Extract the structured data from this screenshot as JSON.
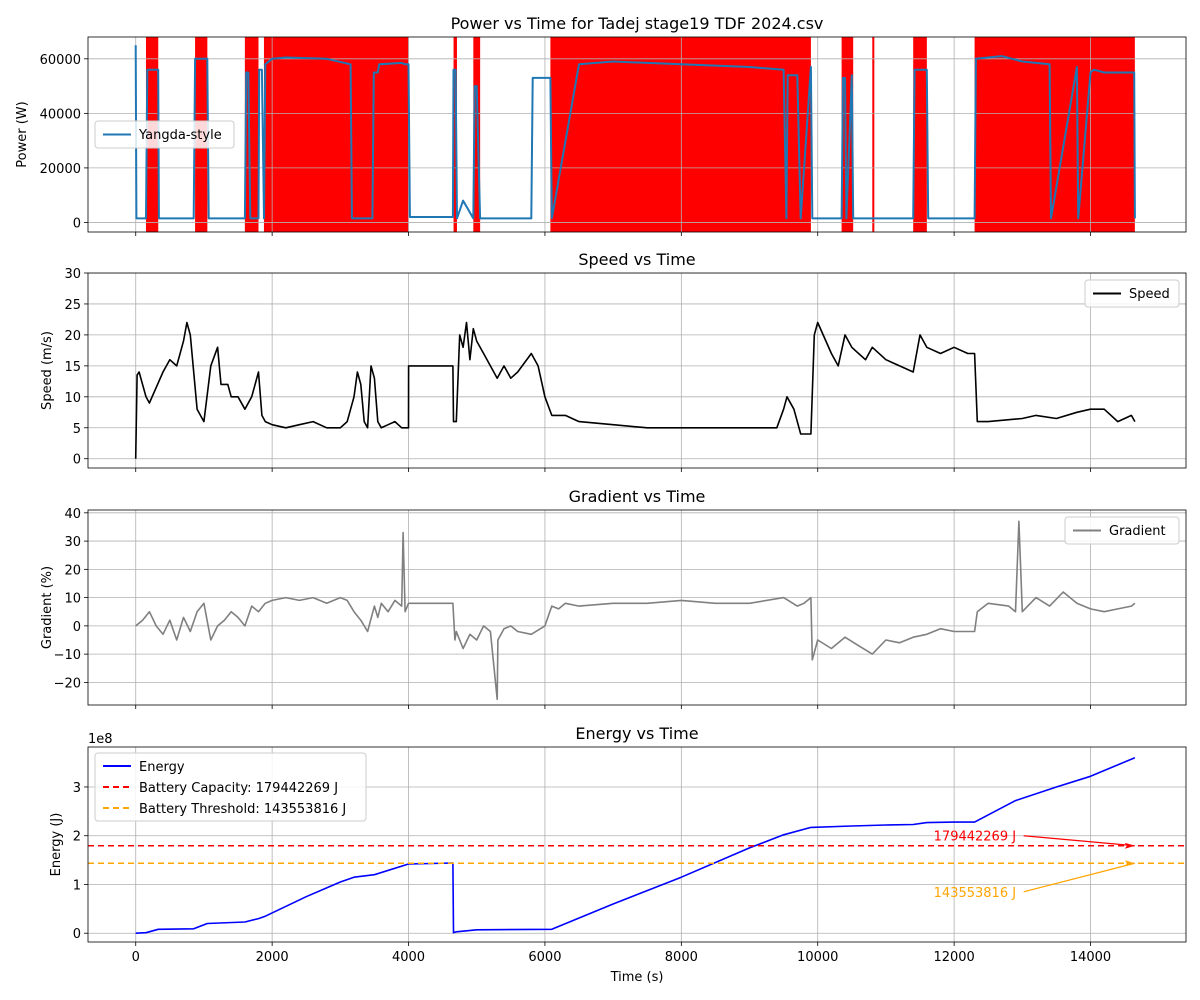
{
  "colors": {
    "power": "#1f77b4",
    "red_region": "#ff0000",
    "speed": "#000000",
    "gradient": "#808080",
    "energy": "#0000ff",
    "capacity": "#ff0000",
    "threshold": "#ffa500",
    "grid": "#b0b0b0"
  },
  "chart_data": [
    {
      "type": "line",
      "title": "Power vs Time for Tadej stage19 TDF 2024.csv",
      "xlabel": "",
      "ylabel": "Power (W)",
      "xlim": [
        -700,
        15400
      ],
      "ylim": [
        -3500,
        68000
      ],
      "yticks": [
        0,
        20000,
        40000,
        60000
      ],
      "ytick_labels": [
        "0",
        "20000",
        "40000",
        "60000"
      ],
      "grid": true,
      "legend": {
        "placement": "center-left",
        "entries": [
          "Yangda-style"
        ]
      },
      "series": [
        {
          "name": "Yangda-style",
          "x": [
            0,
            10,
            30,
            150,
            170,
            330,
            340,
            850,
            870,
            1050,
            1070,
            1600,
            1620,
            1650,
            1680,
            1800,
            1810,
            1850,
            1880,
            1900,
            2000,
            2200,
            2800,
            3150,
            3170,
            3470,
            3490,
            3550,
            3570,
            3900,
            3950,
            4000,
            4020,
            4650,
            4660,
            4690,
            4710,
            4800,
            4950,
            4970,
            5000,
            5050,
            5500,
            5700,
            5800,
            5820,
            6080,
            6100,
            6500,
            7000,
            8000,
            9000,
            9500,
            9540,
            9560,
            9700,
            9750,
            9900,
            9920,
            10350,
            10370,
            10400,
            10420,
            10500,
            10520,
            10800,
            10820,
            11400,
            11420,
            11600,
            11620,
            12300,
            12320,
            12700,
            13000,
            13400,
            13420,
            13800,
            13820,
            14000,
            14050,
            14200,
            14500,
            14640,
            14650
          ],
          "y": [
            65000,
            1500,
            1500,
            1500,
            56000,
            56000,
            1500,
            1500,
            60000,
            60000,
            1500,
            1500,
            55000,
            55000,
            1500,
            1500,
            56000,
            56000,
            1500,
            58000,
            60000,
            60500,
            60000,
            58000,
            1500,
            1500,
            55000,
            55000,
            58000,
            58500,
            58000,
            58000,
            2000,
            2000,
            56000,
            56000,
            1500,
            8000,
            1500,
            50000,
            50000,
            1500,
            1500,
            1500,
            1500,
            53000,
            53000,
            1500,
            58000,
            59000,
            58000,
            57000,
            56000,
            1500,
            54000,
            54000,
            1500,
            57000,
            1500,
            1500,
            53000,
            53000,
            1500,
            54000,
            1500,
            1500,
            1500,
            1500,
            56000,
            56000,
            1500,
            1500,
            60000,
            61000,
            59000,
            58000,
            1500,
            57000,
            1500,
            55000,
            56000,
            55000,
            55000,
            55000,
            1500
          ]
        }
      ],
      "shaded_regions_x": [
        [
          150,
          330
        ],
        [
          870,
          1050
        ],
        [
          1600,
          1800
        ],
        [
          1880,
          4000
        ],
        [
          4660,
          4710
        ],
        [
          4950,
          5050
        ],
        [
          6080,
          9900
        ],
        [
          10350,
          10520
        ],
        [
          10800,
          10830
        ],
        [
          11400,
          11600
        ],
        [
          12300,
          14650
        ]
      ]
    },
    {
      "type": "line",
      "title": "Speed vs Time",
      "xlabel": "",
      "ylabel": "Speed (m/s)",
      "xlim": [
        -700,
        15400
      ],
      "ylim": [
        -1.5,
        30
      ],
      "yticks": [
        0,
        5,
        10,
        15,
        20,
        25,
        30
      ],
      "ytick_labels": [
        "0",
        "5",
        "10",
        "15",
        "20",
        "25",
        "30"
      ],
      "grid": true,
      "legend": {
        "placement": "top-right",
        "entries": [
          "Speed"
        ]
      },
      "series": [
        {
          "name": "Speed",
          "x": [
            0,
            20,
            50,
            150,
            200,
            400,
            500,
            600,
            700,
            750,
            800,
            900,
            1000,
            1100,
            1200,
            1250,
            1350,
            1400,
            1500,
            1600,
            1700,
            1750,
            1800,
            1850,
            1900,
            2000,
            2200,
            2400,
            2600,
            2800,
            3000,
            3100,
            3200,
            3250,
            3300,
            3350,
            3400,
            3450,
            3500,
            3550,
            3600,
            3700,
            3800,
            3900,
            4000,
            4001,
            4650,
            4660,
            4700,
            4750,
            4800,
            4850,
            4900,
            4950,
            5000,
            5100,
            5200,
            5300,
            5400,
            5500,
            5600,
            5800,
            5900,
            6000,
            6100,
            6300,
            6500,
            7000,
            7500,
            8000,
            8500,
            9000,
            9400,
            9500,
            9550,
            9650,
            9700,
            9750,
            9850,
            9900,
            9950,
            10000,
            10200,
            10300,
            10400,
            10500,
            10600,
            10700,
            10800,
            11000,
            11200,
            11400,
            11500,
            11600,
            11800,
            12000,
            12200,
            12300,
            12340,
            12500,
            13000,
            13200,
            13500,
            13800,
            14000,
            14200,
            14400,
            14600,
            14650
          ],
          "y": [
            0,
            13.5,
            14,
            10,
            9,
            14,
            16,
            15,
            19,
            22,
            20,
            8,
            6,
            15,
            18,
            12,
            12,
            10,
            10,
            8,
            10,
            12,
            14,
            7,
            6,
            5.5,
            5,
            5.5,
            6,
            5,
            5,
            6,
            10,
            14,
            12,
            6,
            5,
            15,
            13,
            6,
            5,
            5.5,
            6,
            5,
            5,
            15,
            15,
            6,
            6,
            20,
            18,
            22,
            16,
            21,
            19,
            17,
            15,
            13,
            15,
            13,
            14,
            17,
            15,
            10,
            7,
            7,
            6,
            5.5,
            5,
            5,
            5,
            5,
            5,
            8,
            10,
            8,
            6,
            4,
            4,
            4,
            20,
            22,
            17,
            15,
            20,
            18,
            17,
            16,
            18,
            16,
            15,
            14,
            20,
            18,
            17,
            18,
            17,
            17,
            6,
            6,
            6.5,
            7,
            6.5,
            7.5,
            8,
            8,
            6,
            7,
            6
          ],
          "note_data": ""
        }
      ]
    },
    {
      "type": "line",
      "title": "Gradient vs Time",
      "xlabel": "",
      "ylabel": "Gradient (%)",
      "xlim": [
        -700,
        15400
      ],
      "ylim": [
        -28,
        41
      ],
      "yticks": [
        -20,
        -10,
        0,
        10,
        20,
        30,
        40
      ],
      "ytick_labels": [
        "−20",
        "−10",
        "0",
        "10",
        "20",
        "30",
        "40"
      ],
      "grid": true,
      "legend": {
        "placement": "top-right",
        "entries": [
          "Gradient"
        ]
      },
      "series": [
        {
          "name": "Gradient",
          "x": [
            0,
            100,
            200,
            300,
            400,
            500,
            600,
            700,
            800,
            900,
            1000,
            1100,
            1200,
            1300,
            1400,
            1500,
            1600,
            1700,
            1800,
            1900,
            2000,
            2200,
            2400,
            2600,
            2800,
            3000,
            3100,
            3200,
            3300,
            3400,
            3500,
            3550,
            3600,
            3700,
            3800,
            3900,
            3920,
            3950,
            4000,
            4100,
            4200,
            4300,
            4650,
            4680,
            4700,
            4800,
            4900,
            5000,
            5100,
            5200,
            5300,
            5310,
            5400,
            5500,
            5600,
            5800,
            6000,
            6100,
            6200,
            6300,
            6500,
            7000,
            7500,
            8000,
            8500,
            9000,
            9500,
            9700,
            9800,
            9900,
            9920,
            10000,
            10200,
            10400,
            10600,
            10800,
            11000,
            11200,
            11400,
            11600,
            11800,
            12000,
            12300,
            12340,
            12500,
            12800,
            12900,
            12950,
            13000,
            13200,
            13400,
            13600,
            13800,
            14000,
            14200,
            14400,
            14600,
            14650
          ],
          "y": [
            0,
            2,
            5,
            0,
            -3,
            2,
            -5,
            3,
            -2,
            5,
            8,
            -5,
            0,
            2,
            5,
            3,
            0,
            7,
            5,
            8,
            9,
            10,
            9,
            10,
            8,
            10,
            9,
            5,
            2,
            -2,
            7,
            3,
            8,
            5,
            9,
            7,
            33,
            5,
            8,
            8,
            8,
            8,
            8,
            -5,
            -2,
            -8,
            -3,
            -5,
            0,
            -2,
            -26,
            -5,
            -1,
            0,
            -2,
            -3,
            0,
            7,
            6,
            8,
            7,
            8,
            8,
            9,
            8,
            8,
            10,
            7,
            8,
            10,
            -12,
            -5,
            -8,
            -4,
            -7,
            -10,
            -5,
            -6,
            -4,
            -3,
            -1,
            -2,
            -2,
            5,
            8,
            7,
            5,
            37,
            5,
            10,
            7,
            12,
            8,
            6,
            5,
            6,
            7,
            8
          ]
        }
      ]
    },
    {
      "type": "line",
      "title": "Energy vs Time",
      "xlabel": "Time (s)",
      "ylabel": "Energy (J)",
      "offset_label": "1e8",
      "xlim": [
        -700,
        15400
      ],
      "ylim": [
        -0.18,
        3.82
      ],
      "yticks": [
        0,
        1,
        2,
        3
      ],
      "ytick_labels": [
        "0",
        "1",
        "2",
        "3"
      ],
      "xticks": [
        0,
        2000,
        4000,
        6000,
        8000,
        10000,
        12000,
        14000
      ],
      "xtick_labels": [
        "0",
        "2000",
        "4000",
        "6000",
        "8000",
        "10000",
        "12000",
        "14000"
      ],
      "grid": true,
      "legend": {
        "placement": "top-left",
        "entries": [
          "Energy",
          "Battery Capacity: 179442269 J",
          "Battery Threshold: 143553816 J"
        ]
      },
      "series": [
        {
          "name": "Energy",
          "x": [
            0,
            150,
            330,
            850,
            1050,
            1600,
            1800,
            1900,
            2500,
            3000,
            3200,
            3500,
            4000,
            4650,
            4660,
            4700,
            5000,
            6100,
            7000,
            8000,
            9000,
            9500,
            9900,
            10500,
            11000,
            11400,
            11600,
            12000,
            12300,
            12900,
            13500,
            14000,
            14650
          ],
          "y": [
            0,
            0.01,
            0.08,
            0.09,
            0.2,
            0.23,
            0.3,
            0.35,
            0.75,
            1.05,
            1.15,
            1.2,
            1.42,
            1.44,
            0.01,
            0.03,
            0.07,
            0.08,
            0.6,
            1.15,
            1.75,
            2.02,
            2.17,
            2.2,
            2.22,
            2.23,
            2.27,
            2.28,
            2.28,
            2.72,
            3.0,
            3.22,
            3.6
          ]
        },
        {
          "name": "Battery Capacity: 179442269 J",
          "y_const": 1.79442269
        },
        {
          "name": "Battery Threshold: 143553816 J",
          "y_const": 1.43553816
        }
      ],
      "annotations": [
        {
          "text": "179442269 J",
          "x": 11700,
          "y": 2.0,
          "arrow_to": [
            14650,
            1.79442269
          ],
          "color": "red"
        },
        {
          "text": "143553816 J",
          "x": 11700,
          "y": 0.85,
          "arrow_to": [
            14650,
            1.43553816
          ],
          "color": "orange"
        }
      ]
    }
  ]
}
